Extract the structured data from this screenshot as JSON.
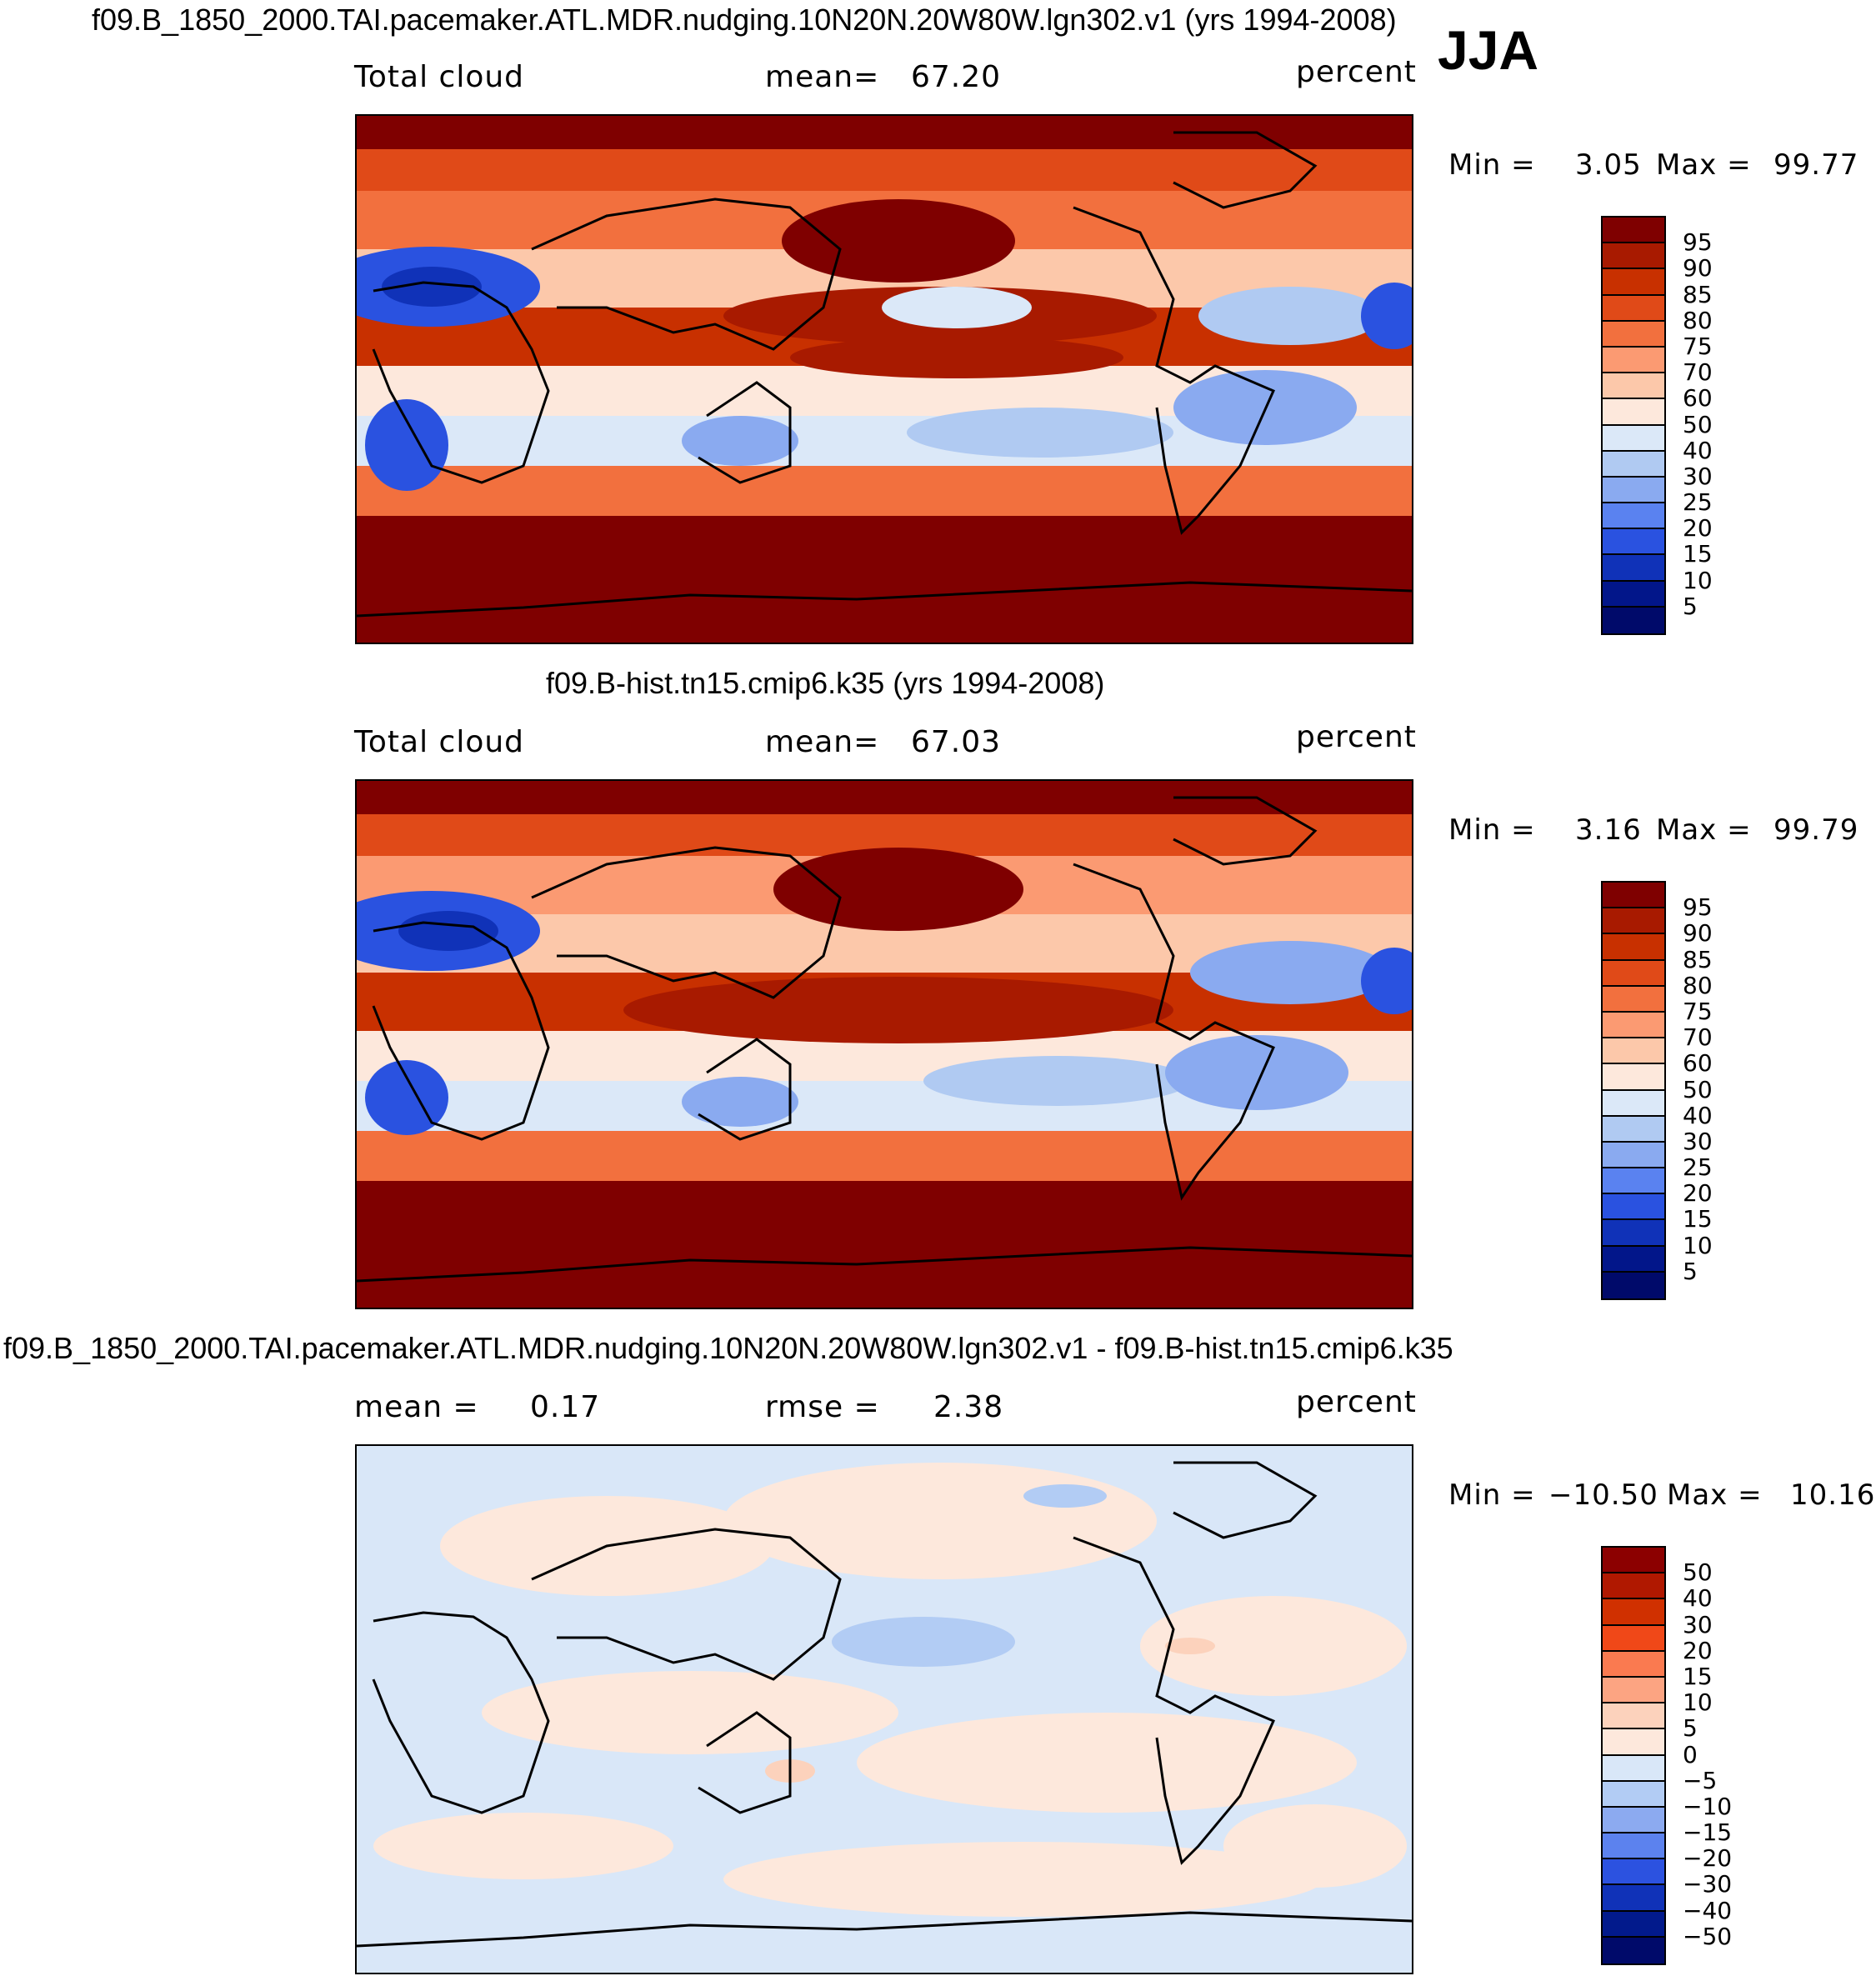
{
  "header": {
    "title1": "f09.B_1850_2000.TAI.pacemaker.ATL.MDR.nudging.10N20N.20W80W.lgn302.v1 (yrs 1994-2008)",
    "season": "JJA"
  },
  "panels": [
    {
      "variable": "Total cloud",
      "stat1_label": "mean=",
      "stat1_value": "67.20",
      "units": "percent",
      "min_label": "Min =",
      "min_value": "3.05",
      "max_label": "Max =",
      "max_value": "99.77",
      "colorbar": [
        "95",
        "90",
        "85",
        "80",
        "75",
        "70",
        "60",
        "50",
        "40",
        "30",
        "25",
        "20",
        "15",
        "10",
        "5"
      ]
    },
    {
      "title": "f09.B-hist.tn15.cmip6.k35 (yrs 1994-2008)",
      "variable": "Total cloud",
      "stat1_label": "mean=",
      "stat1_value": "67.03",
      "units": "percent",
      "min_label": "Min =",
      "min_value": "3.16",
      "max_label": "Max =",
      "max_value": "99.79",
      "colorbar": [
        "95",
        "90",
        "85",
        "80",
        "75",
        "70",
        "60",
        "50",
        "40",
        "30",
        "25",
        "20",
        "15",
        "10",
        "5"
      ]
    },
    {
      "title": "f09.B_1850_2000.TAI.pacemaker.ATL.MDR.nudging.10N20N.20W80W.lgn302.v1 - f09.B-hist.tn15.cmip6.k35",
      "stat1_label": "mean =",
      "stat1_value": "0.17",
      "stat2_label": "rmse =",
      "stat2_value": "2.38",
      "units": "percent",
      "min_label": "Min =",
      "min_value": "−10.50",
      "max_label": "Max =",
      "max_value": "10.16",
      "colorbar": [
        "50",
        "40",
        "30",
        "20",
        "15",
        "10",
        "5",
        "0",
        "−5",
        "−10",
        "−15",
        "−20",
        "−30",
        "−40",
        "−50"
      ]
    }
  ],
  "colors": {
    "abs": [
      "#7f0000",
      "#a81a00",
      "#c83000",
      "#e04a18",
      "#f2703e",
      "#fb9a72",
      "#fcc8aa",
      "#fde8dc",
      "#dbe8f8",
      "#b0caf2",
      "#8aaaf0",
      "#5a82f0",
      "#2a52e0",
      "#1032b8",
      "#02168a",
      "#000a6a"
    ],
    "diff": [
      "#8c0000",
      "#b01800",
      "#d03000",
      "#f04818",
      "#fa7a50",
      "#fca482",
      "#fcd2bc",
      "#fde8dc",
      "#d9e7f8",
      "#b2ccf4",
      "#8caaf0",
      "#5c82ee",
      "#2c52e0",
      "#1032b8",
      "#021a8c",
      "#000a6a"
    ]
  }
}
